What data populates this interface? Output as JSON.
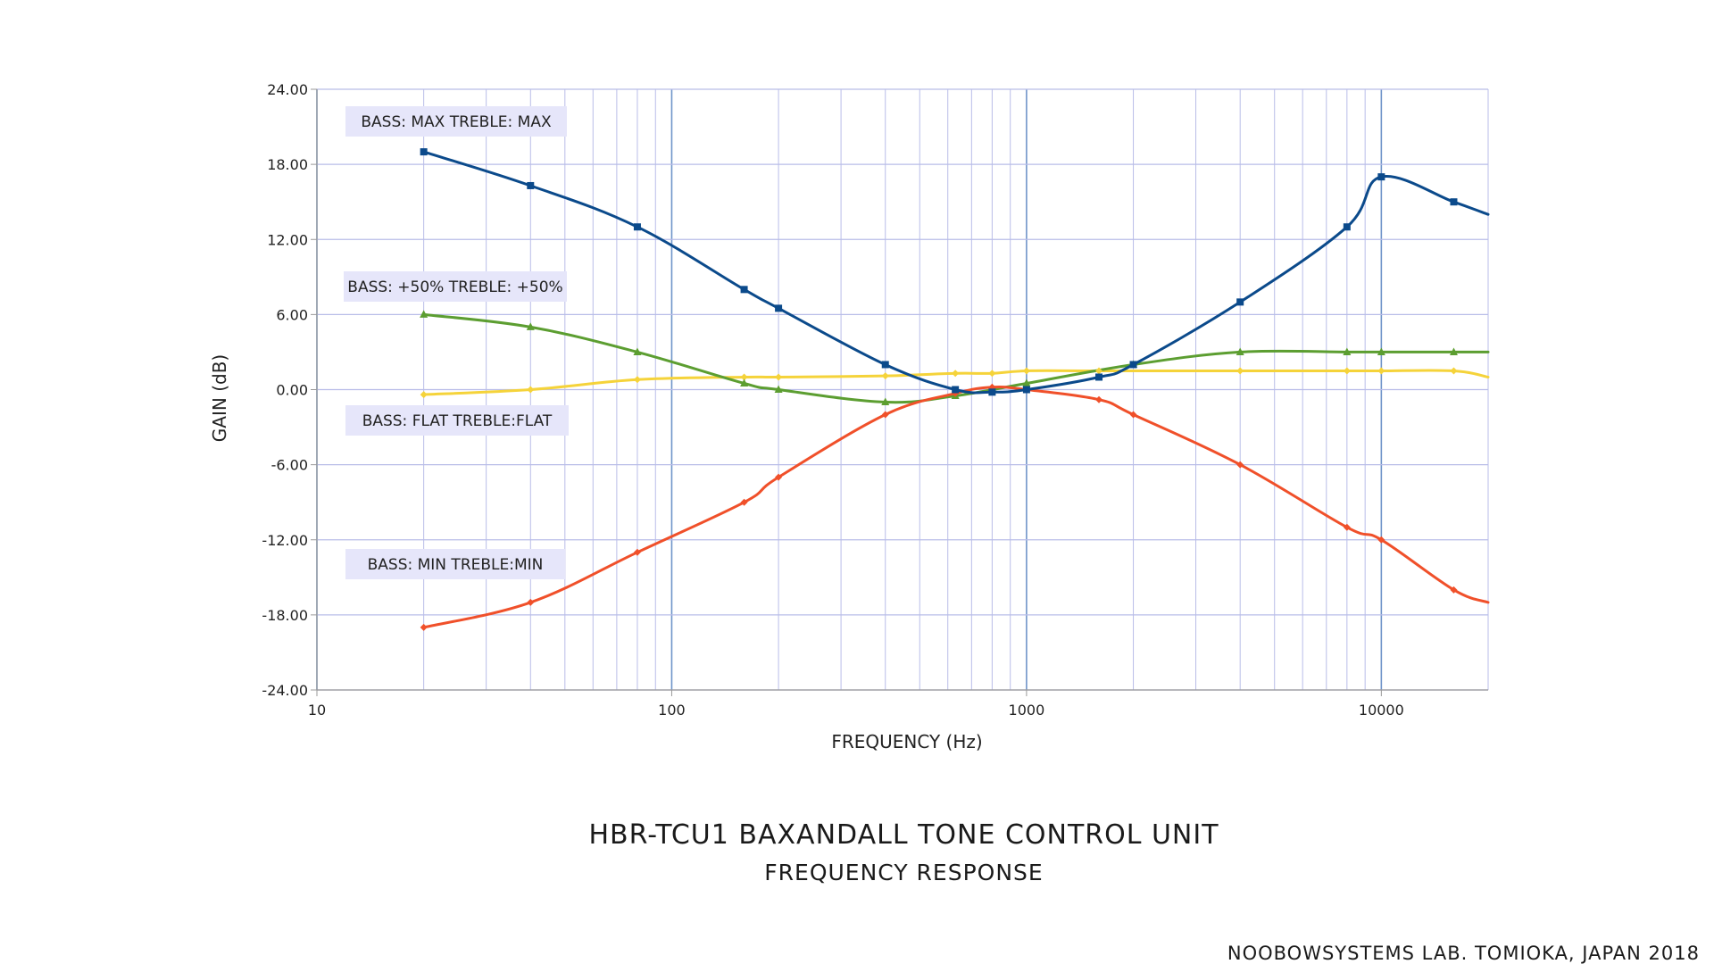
{
  "chart_data": {
    "type": "line",
    "title": "HBR-TCU1 BAXANDALL TONE CONTROL UNIT",
    "subtitle": "FREQUENCY RESPONSE",
    "xlabel": "FREQUENCY (Hz)",
    "ylabel": "GAIN (dB)",
    "x_scale": "log",
    "xlim": [
      10,
      20000
    ],
    "ylim": [
      -24,
      24
    ],
    "x_ticks": [
      "10",
      "100",
      "1000",
      "10000"
    ],
    "y_ticks": [
      "24.00",
      "18.00",
      "12.00",
      "6.00",
      "0.00",
      "-6.00",
      "-12.00",
      "-18.00",
      "-24.00"
    ],
    "grid": true,
    "series": [
      {
        "name": "BASS: MAX TREBLE: MAX",
        "color": "#0b4a8b",
        "marker": "square",
        "points": [
          [
            20,
            19
          ],
          [
            40,
            16.3
          ],
          [
            80,
            13
          ],
          [
            160,
            8
          ],
          [
            200,
            6.5
          ],
          [
            400,
            2
          ],
          [
            630,
            0
          ],
          [
            800,
            -0.2
          ],
          [
            1000,
            0
          ],
          [
            1600,
            1
          ],
          [
            2000,
            2
          ],
          [
            4000,
            7
          ],
          [
            8000,
            13
          ],
          [
            10000,
            17
          ],
          [
            16000,
            15
          ],
          [
            20000,
            14
          ]
        ]
      },
      {
        "name": "BASS: +50% TREBLE: +50%",
        "color": "#5c9e31",
        "marker": "triangle",
        "points": [
          [
            20,
            6
          ],
          [
            40,
            5
          ],
          [
            80,
            3
          ],
          [
            160,
            0.5
          ],
          [
            200,
            0
          ],
          [
            400,
            -1
          ],
          [
            630,
            -0.5
          ],
          [
            1000,
            0.5
          ],
          [
            2000,
            2
          ],
          [
            4000,
            3
          ],
          [
            8000,
            3
          ],
          [
            10000,
            3
          ],
          [
            16000,
            3
          ],
          [
            20000,
            3
          ]
        ]
      },
      {
        "name": "BASS: FLAT TREBLE:FLAT",
        "color": "#f5d33a",
        "marker": "diamond",
        "points": [
          [
            20,
            -0.4
          ],
          [
            40,
            0
          ],
          [
            80,
            0.8
          ],
          [
            160,
            1
          ],
          [
            200,
            1
          ],
          [
            400,
            1.1
          ],
          [
            630,
            1.3
          ],
          [
            800,
            1.3
          ],
          [
            1000,
            1.5
          ],
          [
            1600,
            1.5
          ],
          [
            4000,
            1.5
          ],
          [
            8000,
            1.5
          ],
          [
            10000,
            1.5
          ],
          [
            16000,
            1.5
          ],
          [
            20000,
            1
          ]
        ]
      },
      {
        "name": "BASS: MIN TREBLE:MIN",
        "color": "#f0502a",
        "marker": "diamond",
        "points": [
          [
            20,
            -19
          ],
          [
            40,
            -17
          ],
          [
            80,
            -13
          ],
          [
            160,
            -9
          ],
          [
            200,
            -7
          ],
          [
            400,
            -2
          ],
          [
            630,
            -0.3
          ],
          [
            800,
            0.2
          ],
          [
            1000,
            0
          ],
          [
            1600,
            -0.8
          ],
          [
            2000,
            -2
          ],
          [
            4000,
            -6
          ],
          [
            8000,
            -11
          ],
          [
            10000,
            -12
          ],
          [
            16000,
            -16
          ],
          [
            20000,
            -17
          ]
        ]
      }
    ]
  },
  "series_labels": [
    {
      "text": "BASS: MAX TREBLE: MAX"
    },
    {
      "text": "BASS: +50% TREBLE: +50%"
    },
    {
      "text": "BASS: FLAT TREBLE:FLAT"
    },
    {
      "text": "BASS: MIN TREBLE:MIN"
    }
  ],
  "credit": "NOOBOWSYSTEMS LAB. TOMIOKA, JAPAN 2018"
}
